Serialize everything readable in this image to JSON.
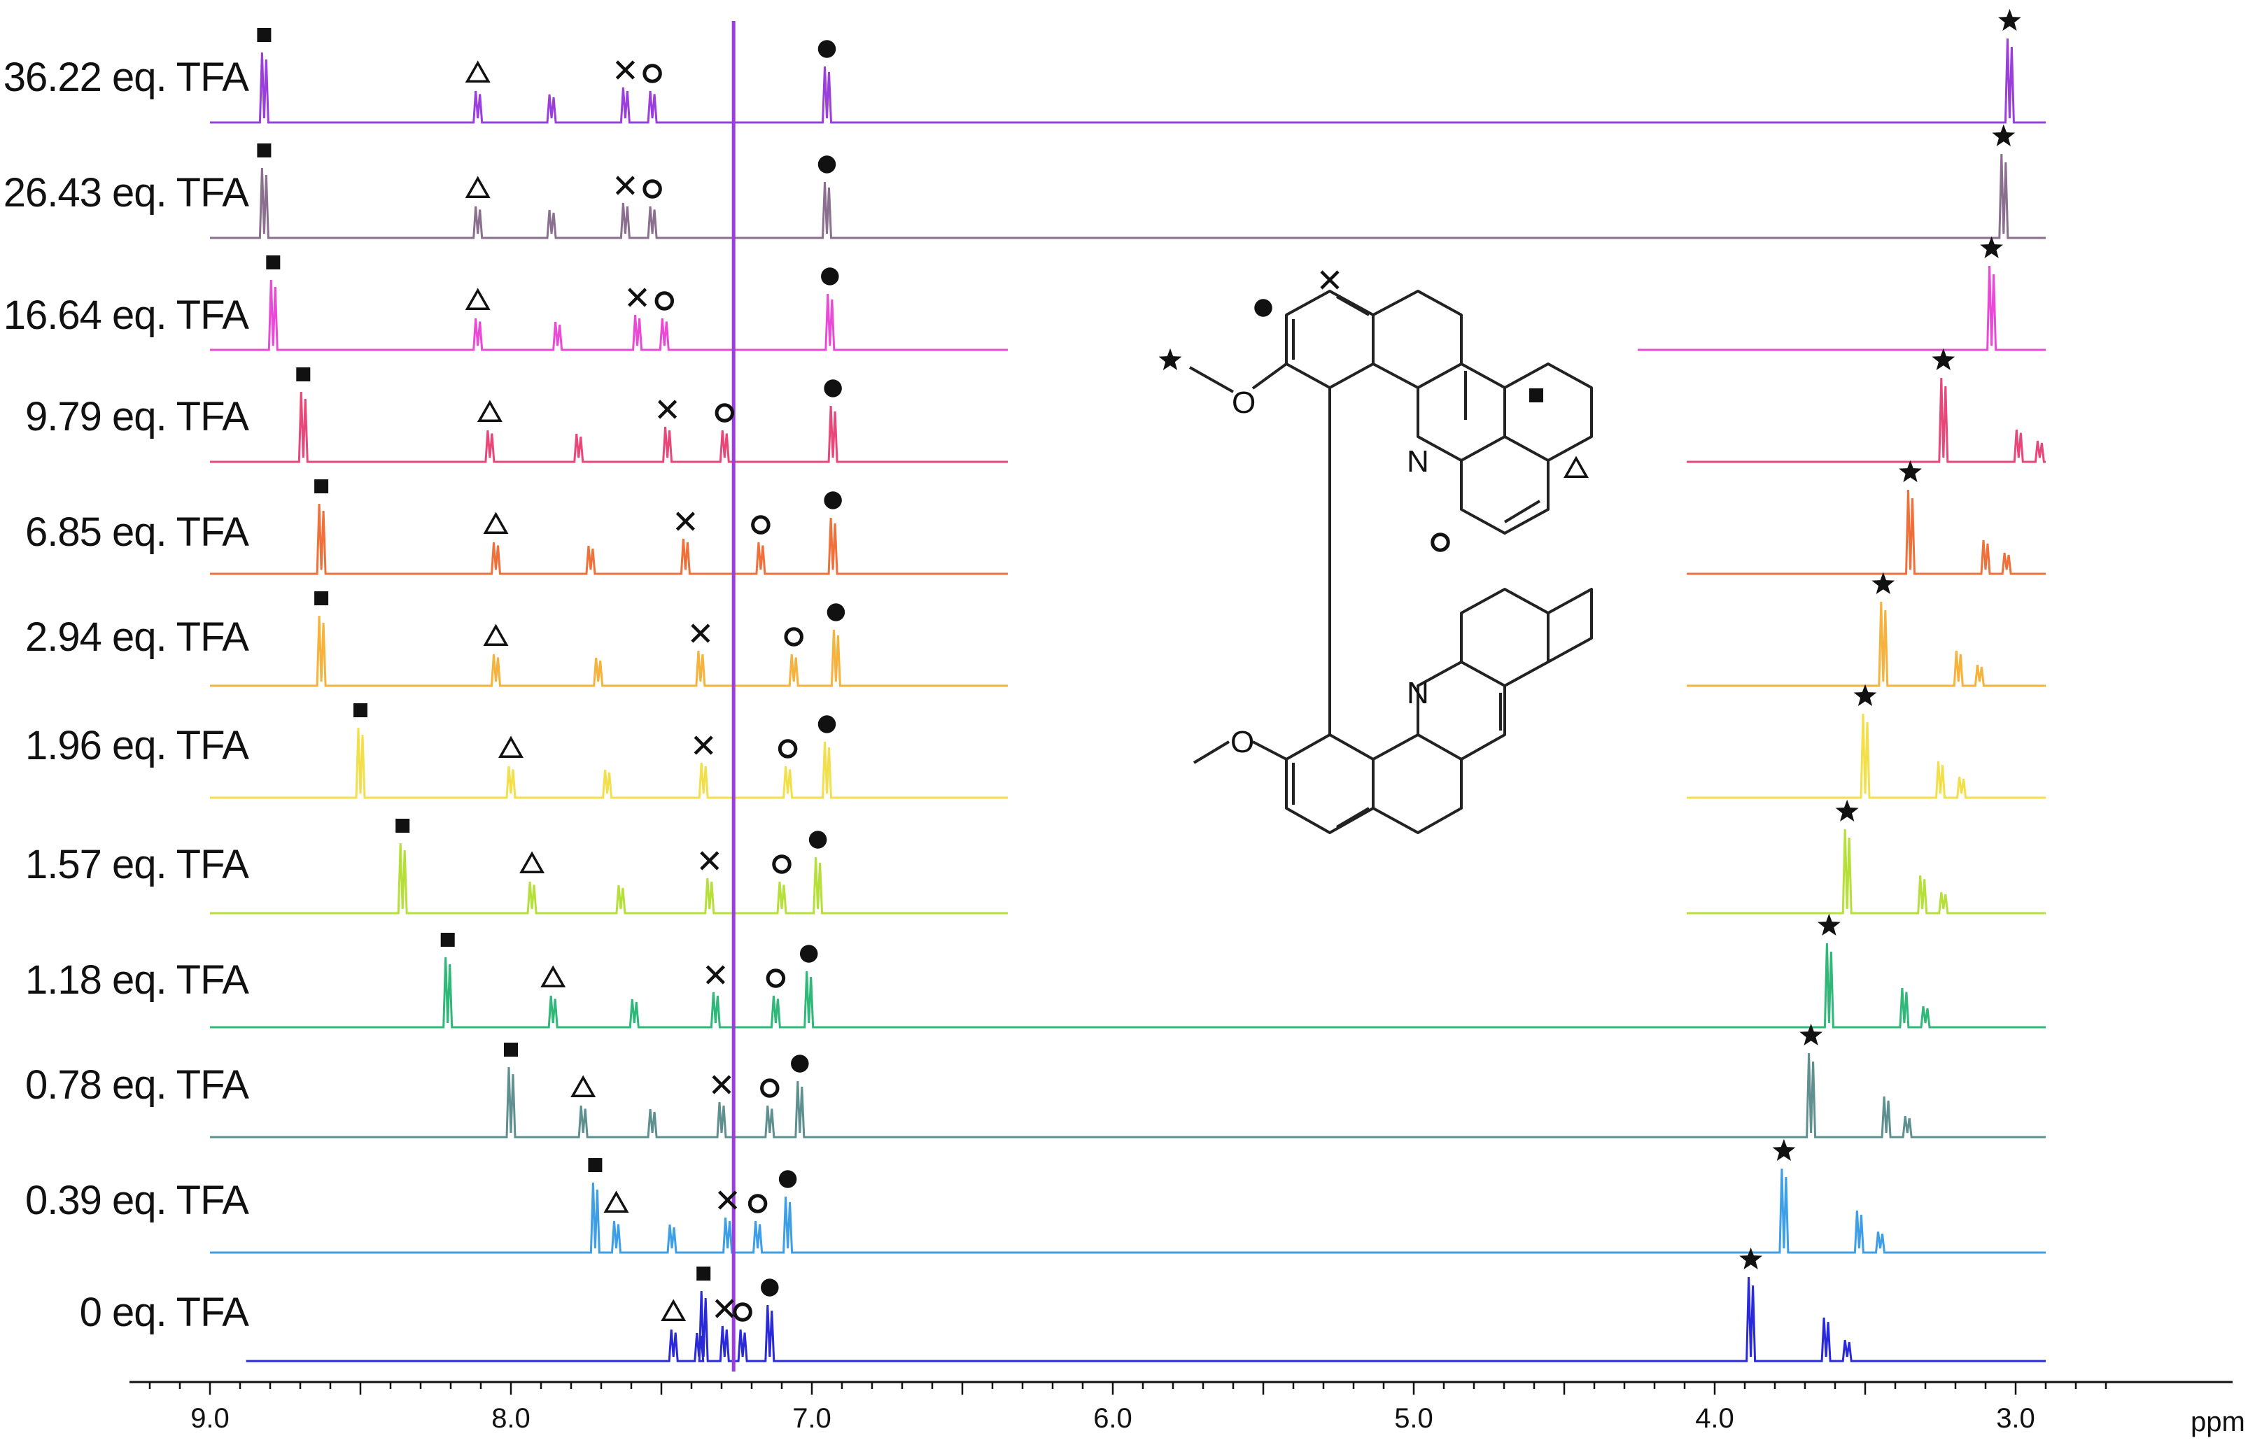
{
  "chart_data": {
    "type": "line",
    "xlabel": "ppm",
    "x_reversed": true,
    "xlim": [
      9.0,
      2.9
    ],
    "ticks": [
      {
        "value": 9.0,
        "label": "9.0"
      },
      {
        "value": 8.0,
        "label": "8.0"
      },
      {
        "value": 7.0,
        "label": "7.0"
      },
      {
        "value": 6.0,
        "label": "6.0"
      },
      {
        "value": 5.0,
        "label": "5.0"
      },
      {
        "value": 4.0,
        "label": "4.0"
      },
      {
        "value": 3.0,
        "label": "3.0"
      }
    ],
    "marker_legend": {
      "square": "■",
      "triangle": "△",
      "cross": "×",
      "circle_open": "○",
      "circle_filled": "●",
      "star": "★"
    },
    "series": [
      {
        "name": "36.22 eq. TFA",
        "color": "#9b3fdc",
        "x_start": 9.0,
        "x_end": 2.9,
        "markers": {
          "square": 8.82,
          "triangle": 8.11,
          "cross": 7.62,
          "circle_open": 7.53,
          "circle_filled": 6.95,
          "star": 3.02
        }
      },
      {
        "name": "26.43 eq. TFA",
        "color": "#8b6f8f",
        "x_start": 9.0,
        "x_end": 2.9,
        "markers": {
          "square": 8.82,
          "triangle": 8.11,
          "cross": 7.62,
          "circle_open": 7.53,
          "circle_filled": 6.95,
          "star": 3.04
        }
      },
      {
        "name": "16.64 eq. TFA",
        "color": "#e94ad6",
        "x_start": 9.0,
        "x_end": 2.9,
        "markers": {
          "square": 8.79,
          "triangle": 8.11,
          "cross": 7.58,
          "circle_open": 7.49,
          "circle_filled": 6.94,
          "star": 3.08
        }
      },
      {
        "name": "9.79 eq. TFA",
        "color": "#e8477a",
        "x_start": 9.0,
        "x_end": 2.9,
        "markers": {
          "square": 8.69,
          "triangle": 8.07,
          "cross": 7.48,
          "circle_open": 7.29,
          "circle_filled": 6.93,
          "star": 3.24
        }
      },
      {
        "name": "6.85 eq. TFA",
        "color": "#f0703a",
        "x_start": 9.0,
        "x_end": 2.9,
        "markers": {
          "square": 8.63,
          "triangle": 8.05,
          "cross": 7.42,
          "circle_open": 7.17,
          "circle_filled": 6.93,
          "star": 3.35
        }
      },
      {
        "name": "2.94 eq. TFA",
        "color": "#f6b23a",
        "x_start": 9.0,
        "x_end": 2.9,
        "markers": {
          "square": 8.63,
          "triangle": 8.05,
          "cross": 7.37,
          "circle_open": 7.06,
          "circle_filled": 6.92,
          "star": 3.44
        }
      },
      {
        "name": "1.96 eq. TFA",
        "color": "#f2df4a",
        "x_start": 9.0,
        "x_end": 2.9,
        "markers": {
          "square": 8.5,
          "triangle": 8.0,
          "cross": 7.36,
          "circle_open": 7.08,
          "circle_filled": 6.95,
          "star": 3.5
        }
      },
      {
        "name": "1.57 eq. TFA",
        "color": "#b5e03a",
        "x_start": 9.0,
        "x_end": 2.9,
        "markers": {
          "square": 8.36,
          "triangle": 7.93,
          "cross": 7.34,
          "circle_open": 7.1,
          "circle_filled": 6.98,
          "star": 3.56
        }
      },
      {
        "name": "1.18 eq. TFA",
        "color": "#2fb878",
        "x_start": 9.0,
        "x_end": 2.9,
        "markers": {
          "square": 8.21,
          "triangle": 7.86,
          "cross": 7.32,
          "circle_open": 7.12,
          "circle_filled": 7.01,
          "star": 3.62
        }
      },
      {
        "name": "0.78 eq. TFA",
        "color": "#5f8f8f",
        "x_start": 9.0,
        "x_end": 2.9,
        "markers": {
          "square": 8.0,
          "triangle": 7.76,
          "cross": 7.3,
          "circle_open": 7.14,
          "circle_filled": 7.04,
          "star": 3.68
        }
      },
      {
        "name": "0.39 eq. TFA",
        "color": "#3f9fe6",
        "x_start": 9.0,
        "x_end": 2.9,
        "markers": {
          "square": 7.72,
          "triangle": 7.65,
          "cross": 7.28,
          "circle_open": 7.18,
          "circle_filled": 7.08,
          "star": 3.77
        }
      },
      {
        "name": "0 eq. TFA",
        "color": "#2a2ad8",
        "x_start": 8.88,
        "x_end": 2.9,
        "markers": {
          "square": 7.36,
          "triangle": 7.46,
          "cross": 7.29,
          "circle_open": 7.23,
          "circle_filled": 7.14,
          "star": 3.88
        }
      }
    ],
    "reference_line": {
      "ppm": 7.26,
      "color": "#9b3fdc"
    }
  },
  "structure": {
    "atom_N_top": "N",
    "atom_N_bottom": "N",
    "atom_O_top": "O",
    "atom_O_bottom": "O"
  }
}
